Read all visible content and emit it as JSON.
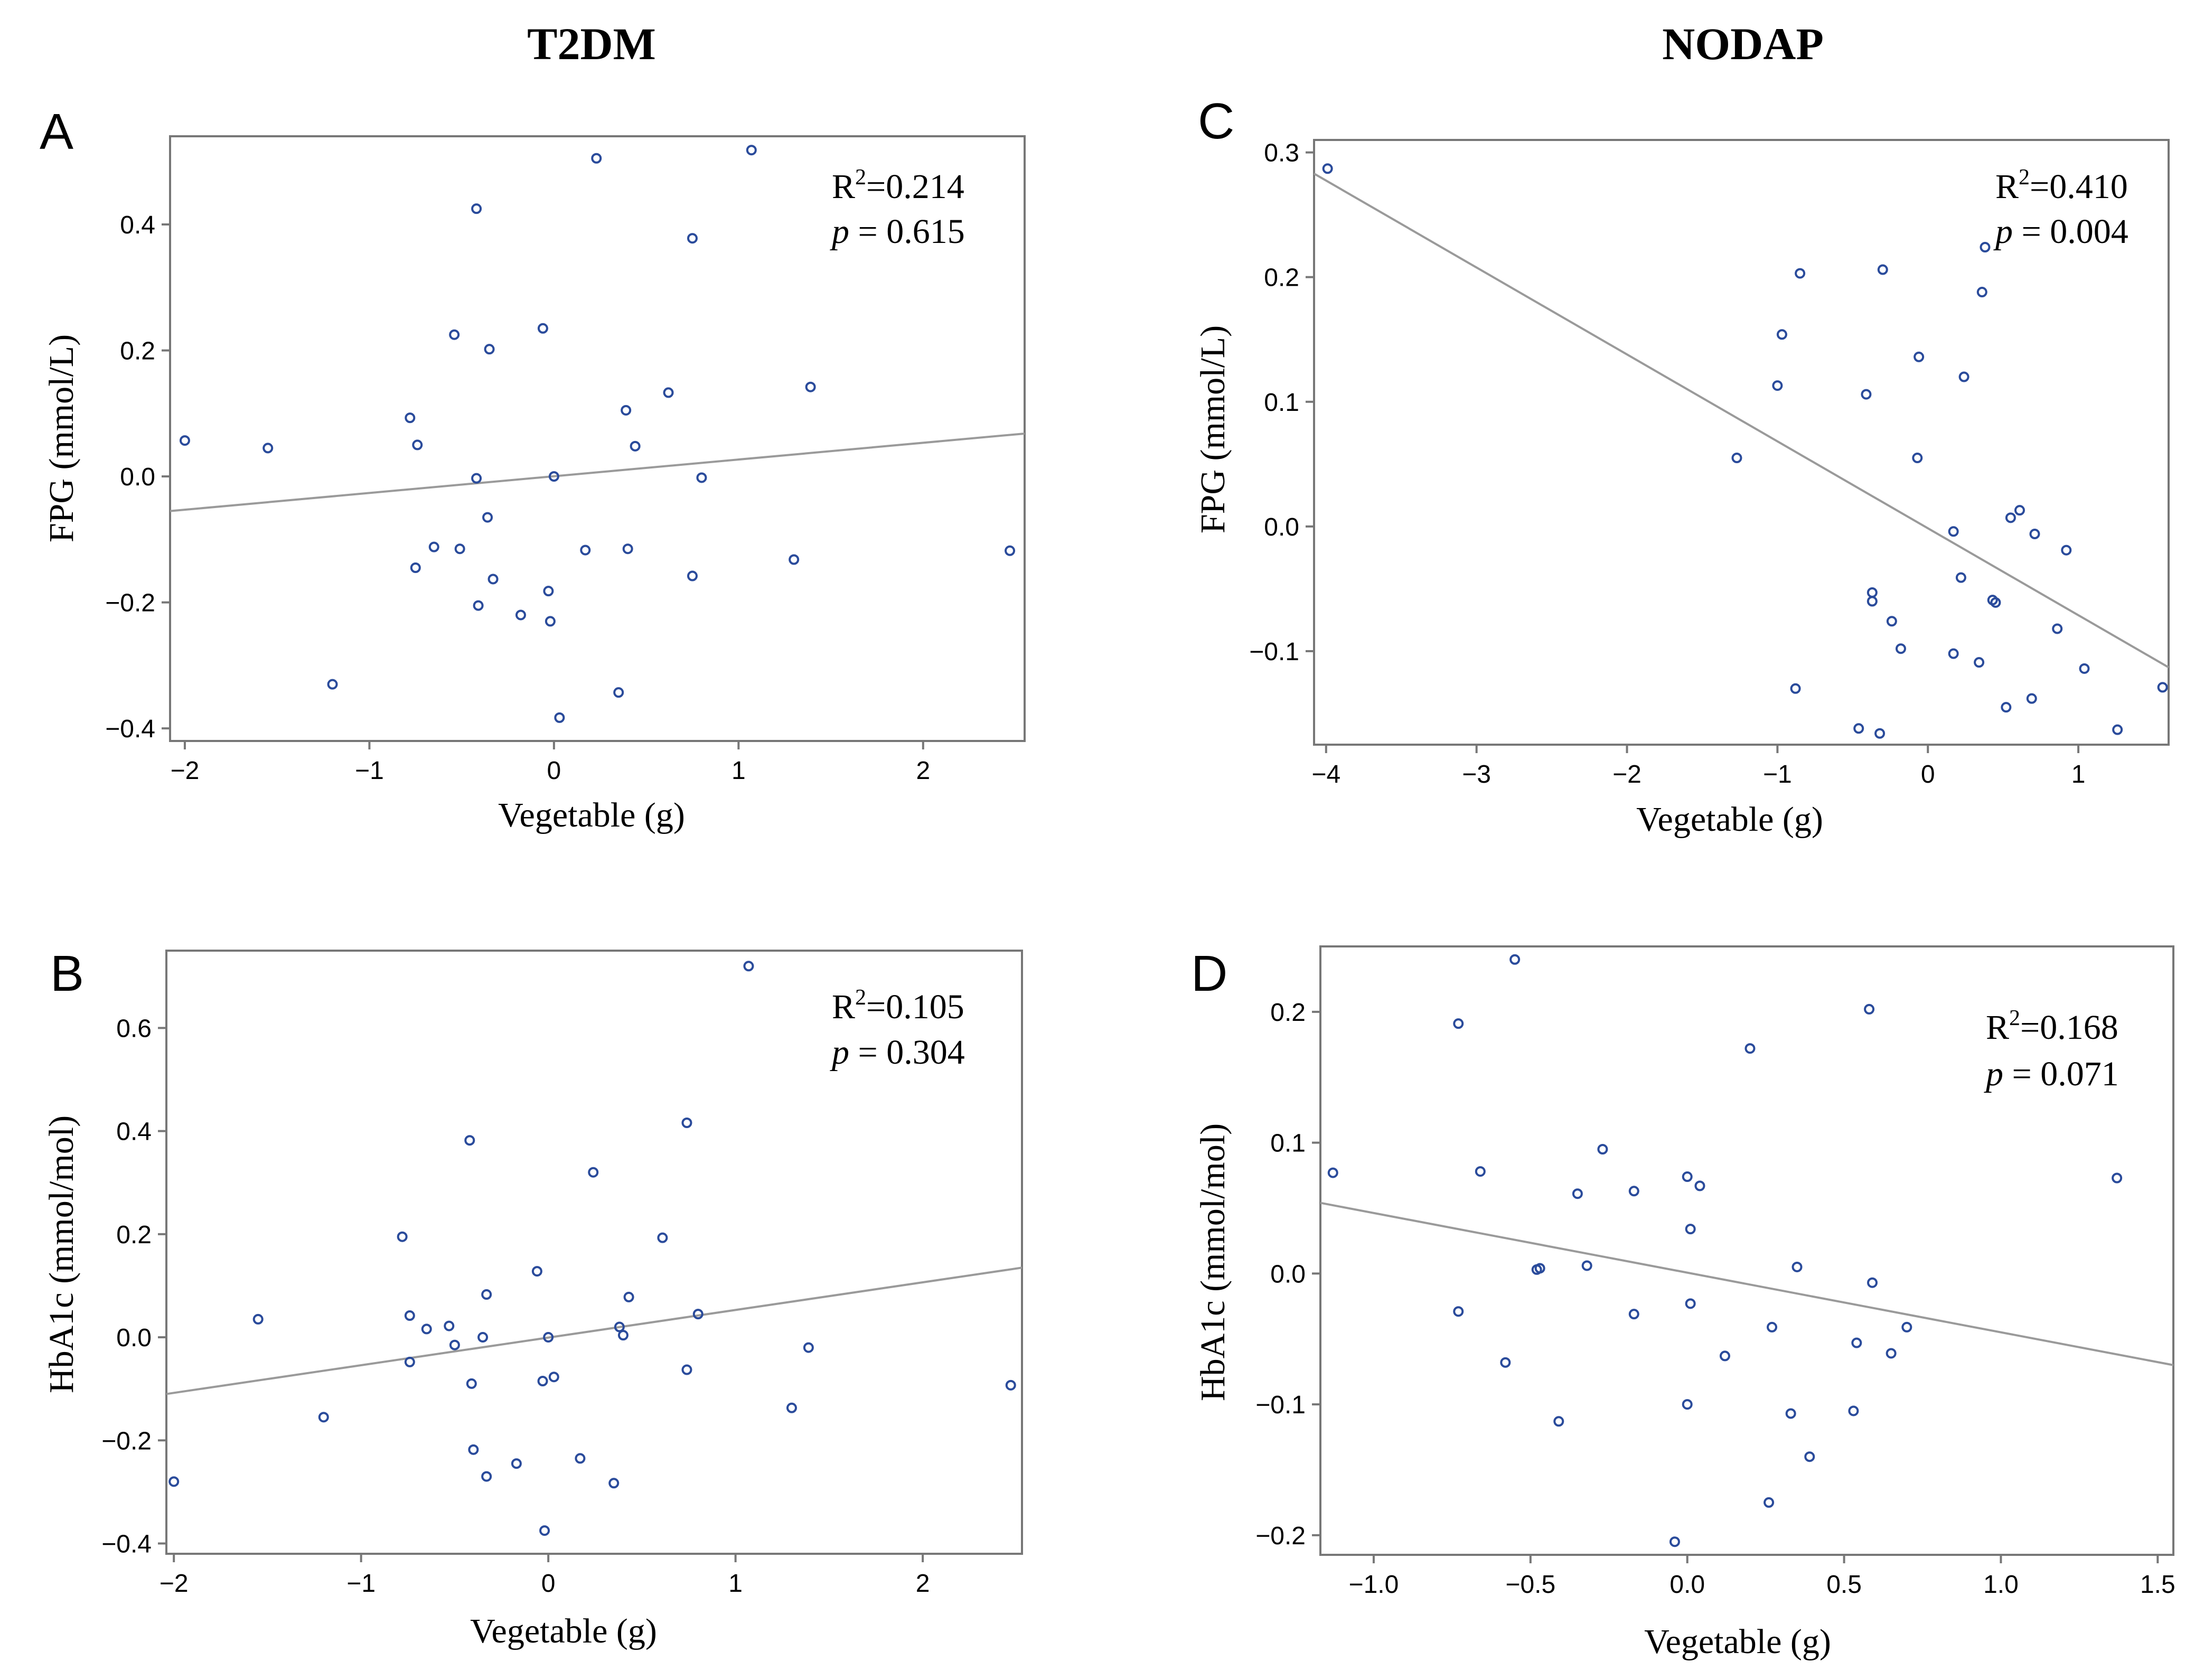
{
  "figure": {
    "group_left": "T2DM",
    "group_right": "NODAP"
  },
  "colors": {
    "point": "#2a4b9b",
    "fit_line": "#9a9a9a",
    "frame": "#777777",
    "text": "#000000"
  },
  "chart_data": [
    {
      "id": "A",
      "panel_label": "A",
      "type": "scatter",
      "xlabel": "Vegetable (g)",
      "ylabel": "FPG (mmol/L)",
      "xlim": [
        -2.08,
        2.55
      ],
      "ylim": [
        -0.42,
        0.54
      ],
      "xticks": [
        -2,
        -1,
        0,
        1,
        2
      ],
      "xtick_labels": [
        "−2",
        "−1",
        "0",
        "1",
        "2"
      ],
      "yticks": [
        -0.4,
        -0.2,
        0.0,
        0.2,
        0.4
      ],
      "ytick_labels": [
        "−0.4",
        "−0.2",
        "0.0",
        "0.2",
        "0.4"
      ],
      "r2_prefix": "R",
      "r2_sup": "2",
      "r2_value": "=0.214",
      "p_symbol": "p",
      "p_value": " = 0.615",
      "fit": {
        "x": [
          -2.08,
          2.55
        ],
        "y": [
          -0.055,
          0.068
        ]
      },
      "points": [
        [
          -2.0,
          0.057
        ],
        [
          -1.55,
          0.045
        ],
        [
          -1.2,
          -0.33
        ],
        [
          -0.78,
          0.093
        ],
        [
          -0.75,
          -0.145
        ],
        [
          -0.74,
          0.05
        ],
        [
          -0.65,
          -0.112
        ],
        [
          -0.54,
          0.225
        ],
        [
          -0.51,
          -0.115
        ],
        [
          -0.42,
          0.425
        ],
        [
          -0.42,
          -0.003
        ],
        [
          -0.41,
          -0.205
        ],
        [
          -0.36,
          -0.065
        ],
        [
          -0.35,
          0.202
        ],
        [
          -0.33,
          -0.163
        ],
        [
          -0.18,
          -0.22
        ],
        [
          -0.06,
          0.235
        ],
        [
          -0.03,
          -0.182
        ],
        [
          -0.02,
          -0.23
        ],
        [
          0.0,
          0.0
        ],
        [
          0.03,
          -0.383
        ],
        [
          0.23,
          0.505
        ],
        [
          0.17,
          -0.117
        ],
        [
          0.35,
          -0.343
        ],
        [
          0.39,
          0.105
        ],
        [
          0.4,
          -0.115
        ],
        [
          0.44,
          0.048
        ],
        [
          0.62,
          0.133
        ],
        [
          0.75,
          0.378
        ],
        [
          0.75,
          -0.158
        ],
        [
          0.8,
          -0.002
        ],
        [
          1.07,
          0.518
        ],
        [
          1.3,
          -0.132
        ],
        [
          1.39,
          0.142
        ],
        [
          2.47,
          -0.118
        ]
      ]
    },
    {
      "id": "B",
      "panel_label": "B",
      "type": "scatter",
      "xlabel": "Vegetable (g)",
      "ylabel": "HbA1c (mmol/mol)",
      "xlim": [
        -2.04,
        2.53
      ],
      "ylim": [
        -0.42,
        0.75
      ],
      "xticks": [
        -2,
        -1,
        0,
        1,
        2
      ],
      "xtick_labels": [
        "−2",
        "−1",
        "0",
        "1",
        "2"
      ],
      "yticks": [
        -0.4,
        -0.2,
        0.0,
        0.2,
        0.4,
        0.6
      ],
      "ytick_labels": [
        "−0.4",
        "−0.2",
        "0.0",
        "0.2",
        "0.4",
        "0.6"
      ],
      "r2_prefix": "R",
      "r2_sup": "2",
      "r2_value": "=0.105",
      "p_symbol": "p",
      "p_value": " = 0.304",
      "fit": {
        "x": [
          -2.04,
          2.53
        ],
        "y": [
          -0.11,
          0.135
        ]
      },
      "points": [
        [
          -2.0,
          -0.28
        ],
        [
          -1.55,
          0.035
        ],
        [
          -1.2,
          -0.155
        ],
        [
          -0.78,
          0.195
        ],
        [
          -0.74,
          0.042
        ],
        [
          -0.74,
          -0.048
        ],
        [
          -0.65,
          0.016
        ],
        [
          -0.53,
          0.022
        ],
        [
          -0.5,
          -0.015
        ],
        [
          -0.42,
          0.382
        ],
        [
          -0.41,
          -0.09
        ],
        [
          -0.4,
          -0.218
        ],
        [
          -0.35,
          0.0
        ],
        [
          -0.33,
          0.083
        ],
        [
          -0.33,
          -0.27
        ],
        [
          -0.17,
          -0.245
        ],
        [
          -0.06,
          0.128
        ],
        [
          -0.03,
          -0.085
        ],
        [
          -0.02,
          -0.375
        ],
        [
          0.0,
          0.0
        ],
        [
          0.03,
          -0.077
        ],
        [
          0.17,
          -0.235
        ],
        [
          0.24,
          0.32
        ],
        [
          0.35,
          -0.283
        ],
        [
          0.38,
          0.02
        ],
        [
          0.4,
          0.004
        ],
        [
          0.43,
          0.078
        ],
        [
          0.61,
          0.193
        ],
        [
          0.74,
          0.416
        ],
        [
          0.74,
          -0.063
        ],
        [
          0.8,
          0.045
        ],
        [
          1.07,
          0.72
        ],
        [
          1.3,
          -0.137
        ],
        [
          1.39,
          -0.02
        ],
        [
          2.47,
          -0.093
        ]
      ]
    },
    {
      "id": "C",
      "panel_label": "C",
      "type": "scatter",
      "xlabel": "Vegetable (g)",
      "ylabel": "FPG (mmol/L)",
      "xlim": [
        -4.08,
        1.6
      ],
      "ylim": [
        -0.175,
        0.31
      ],
      "xticks": [
        -4,
        -3,
        -2,
        -1,
        0,
        1
      ],
      "xtick_labels": [
        "−4",
        "−3",
        "−2",
        "−1",
        "0",
        "1"
      ],
      "yticks": [
        -0.1,
        0.0,
        0.1,
        0.2,
        0.3
      ],
      "ytick_labels": [
        "−0.1",
        "0.0",
        "0.1",
        "0.2",
        "0.3"
      ],
      "r2_prefix": "R",
      "r2_sup": "2",
      "r2_value": "=0.410",
      "p_symbol": "p",
      "p_value": " = 0.004",
      "fit": {
        "x": [
          -4.08,
          1.6
        ],
        "y": [
          0.283,
          -0.113
        ]
      },
      "points": [
        [
          -3.99,
          0.287
        ],
        [
          -1.27,
          0.055
        ],
        [
          -1.0,
          0.113
        ],
        [
          -0.97,
          0.154
        ],
        [
          -0.88,
          -0.13
        ],
        [
          -0.85,
          0.203
        ],
        [
          -0.46,
          -0.162
        ],
        [
          -0.41,
          0.106
        ],
        [
          -0.37,
          -0.053
        ],
        [
          -0.37,
          -0.06
        ],
        [
          -0.3,
          0.206
        ],
        [
          -0.32,
          -0.166
        ],
        [
          -0.24,
          -0.076
        ],
        [
          -0.18,
          -0.098
        ],
        [
          -0.06,
          0.136
        ],
        [
          -0.07,
          0.055
        ],
        [
          0.17,
          -0.102
        ],
        [
          0.17,
          -0.004
        ],
        [
          0.22,
          -0.041
        ],
        [
          0.24,
          0.12
        ],
        [
          0.34,
          -0.109
        ],
        [
          0.36,
          0.188
        ],
        [
          0.38,
          0.224
        ],
        [
          0.43,
          -0.059
        ],
        [
          0.45,
          -0.061
        ],
        [
          0.52,
          -0.145
        ],
        [
          0.55,
          0.007
        ],
        [
          0.61,
          0.013
        ],
        [
          0.69,
          -0.138
        ],
        [
          0.71,
          -0.006
        ],
        [
          0.86,
          -0.082
        ],
        [
          0.92,
          -0.019
        ],
        [
          1.04,
          -0.114
        ],
        [
          1.26,
          -0.163
        ],
        [
          1.56,
          -0.129
        ]
      ]
    },
    {
      "id": "D",
      "panel_label": "D",
      "type": "scatter",
      "xlabel": "Vegetable (g)",
      "ylabel": "HbA1c (mmol/mol)",
      "xlim": [
        -1.17,
        1.55
      ],
      "ylim": [
        -0.215,
        0.25
      ],
      "xticks": [
        -1.0,
        -0.5,
        0.0,
        0.5,
        1.0,
        1.5
      ],
      "xtick_labels": [
        "−1.0",
        "−0.5",
        "0.0",
        "0.5",
        "1.0",
        "1.5"
      ],
      "yticks": [
        -0.2,
        -0.1,
        0.0,
        0.1,
        0.2
      ],
      "ytick_labels": [
        "−0.2",
        "−0.1",
        "0.0",
        "0.1",
        "0.2"
      ],
      "r2_prefix": "R",
      "r2_sup": "2",
      "r2_value": "=0.168",
      "p_symbol": "p",
      "p_value": " = 0.071",
      "fit": {
        "x": [
          -1.17,
          1.55
        ],
        "y": [
          0.054,
          -0.07
        ]
      },
      "points": [
        [
          -1.13,
          0.077
        ],
        [
          -0.73,
          0.191
        ],
        [
          -0.73,
          -0.029
        ],
        [
          -0.66,
          0.078
        ],
        [
          -0.58,
          -0.068
        ],
        [
          -0.55,
          0.24
        ],
        [
          -0.48,
          0.003
        ],
        [
          -0.47,
          0.004
        ],
        [
          -0.41,
          -0.113
        ],
        [
          -0.35,
          0.061
        ],
        [
          -0.32,
          0.006
        ],
        [
          -0.27,
          0.095
        ],
        [
          -0.17,
          0.063
        ],
        [
          -0.17,
          -0.031
        ],
        [
          -0.04,
          -0.205
        ],
        [
          0.0,
          0.074
        ],
        [
          0.01,
          0.034
        ],
        [
          0.01,
          -0.023
        ],
        [
          0.0,
          -0.1
        ],
        [
          0.04,
          0.067
        ],
        [
          0.12,
          -0.063
        ],
        [
          0.2,
          0.172
        ],
        [
          0.26,
          -0.175
        ],
        [
          0.27,
          -0.041
        ],
        [
          0.33,
          -0.107
        ],
        [
          0.35,
          0.005
        ],
        [
          0.39,
          -0.14
        ],
        [
          0.53,
          -0.105
        ],
        [
          0.54,
          -0.053
        ],
        [
          0.58,
          0.202
        ],
        [
          0.59,
          -0.007
        ],
        [
          0.65,
          -0.061
        ],
        [
          0.7,
          -0.041
        ],
        [
          1.37,
          0.073
        ]
      ]
    }
  ]
}
